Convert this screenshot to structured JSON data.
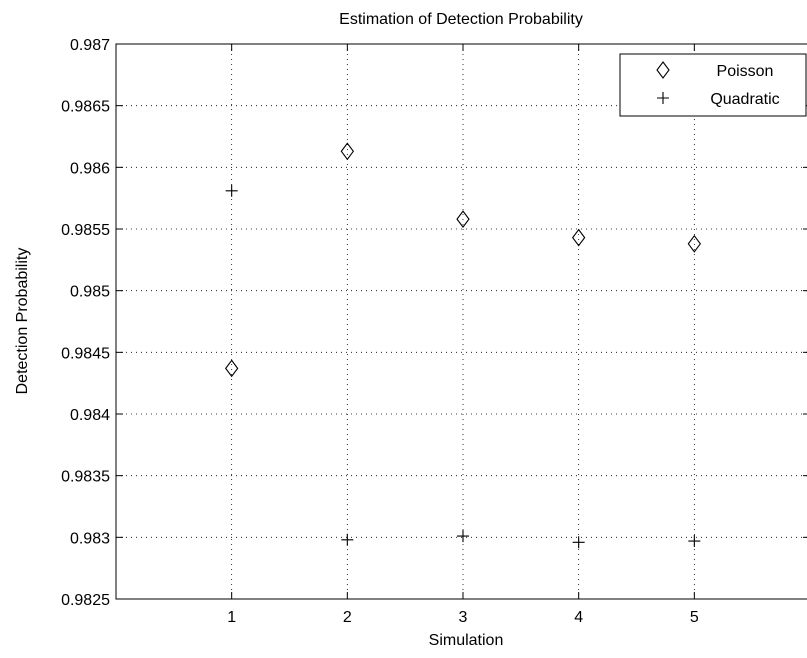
{
  "chart_data": {
    "type": "scatter",
    "title": "Estimation of Detection Probability",
    "xlabel": "Simulation",
    "ylabel": "Detection Probability",
    "xlim": [
      0,
      6
    ],
    "ylim": [
      0.9825,
      0.987
    ],
    "xticks": [
      1,
      2,
      3,
      4,
      5
    ],
    "yticks": [
      0.9825,
      0.983,
      0.9835,
      0.984,
      0.9845,
      0.985,
      0.9855,
      0.986,
      0.9865,
      0.987
    ],
    "ytick_labels": [
      "0.9825",
      "0.983",
      "0.9835",
      "0.984",
      "0.9845",
      "0.985",
      "0.9855",
      "0.986",
      "0.9865",
      "0.987"
    ],
    "grid": true,
    "legend_position": "top-right",
    "series": [
      {
        "name": "Poisson",
        "marker": "diamond",
        "x": [
          1,
          2,
          3,
          4,
          5
        ],
        "y": [
          0.98437,
          0.98613,
          0.98558,
          0.98543,
          0.98538
        ]
      },
      {
        "name": "Quadratic",
        "marker": "plus",
        "x": [
          1,
          2,
          3,
          4,
          5
        ],
        "y": [
          0.98581,
          0.98298,
          0.98301,
          0.98296,
          0.98297
        ]
      }
    ]
  }
}
